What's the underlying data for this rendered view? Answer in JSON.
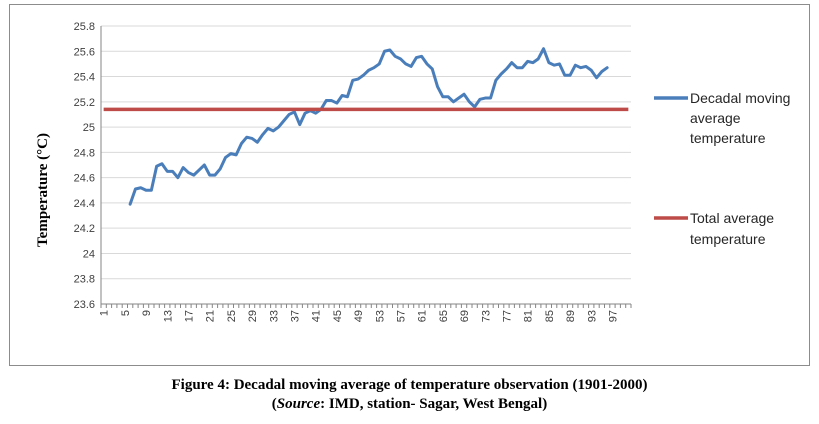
{
  "chart_data": {
    "type": "line",
    "ylabel": "Temperature (°C)",
    "ylim": [
      23.6,
      25.8
    ],
    "ytick_step": 0.2,
    "yticks": [
      "23.6",
      "23.8",
      "24",
      "24.2",
      "24.4",
      "24.6",
      "24.8",
      "25",
      "25.2",
      "25.4",
      "25.6",
      "25.8"
    ],
    "xlim": [
      1,
      100
    ],
    "xtick_labels": [
      1,
      5,
      9,
      13,
      17,
      21,
      25,
      29,
      33,
      37,
      41,
      45,
      49,
      53,
      57,
      61,
      65,
      69,
      73,
      77,
      81,
      85,
      89,
      93,
      97
    ],
    "grid": true,
    "legend_position": "right",
    "series": [
      {
        "name": "Decadal moving average temperature",
        "color": "#4a7ebb",
        "x_start": 6,
        "values": [
          24.39,
          24.51,
          24.52,
          24.5,
          24.5,
          24.69,
          24.71,
          24.65,
          24.65,
          24.6,
          24.68,
          24.64,
          24.62,
          24.66,
          24.7,
          24.62,
          24.62,
          24.67,
          24.76,
          24.79,
          24.78,
          24.87,
          24.92,
          24.91,
          24.88,
          24.94,
          24.99,
          24.97,
          25.0,
          25.05,
          25.1,
          25.12,
          25.02,
          25.11,
          25.13,
          25.11,
          25.14,
          25.21,
          25.21,
          25.19,
          25.25,
          25.24,
          25.37,
          25.38,
          25.41,
          25.45,
          25.47,
          25.5,
          25.6,
          25.61,
          25.56,
          25.54,
          25.5,
          25.48,
          25.55,
          25.56,
          25.5,
          25.46,
          25.32,
          25.24,
          25.24,
          25.2,
          25.23,
          25.26,
          25.2,
          25.16,
          25.22,
          25.23,
          25.23,
          25.37,
          25.42,
          25.46,
          25.51,
          25.47,
          25.47,
          25.52,
          25.51,
          25.54,
          25.62,
          25.51,
          25.49,
          25.5,
          25.41,
          25.41,
          25.49,
          25.47,
          25.48,
          25.45,
          25.39,
          25.44,
          25.47
        ]
      },
      {
        "name": "Total average temperature",
        "color": "#be4b48",
        "x_start": 1,
        "constant": 25.14
      }
    ]
  },
  "legend": {
    "series1_lines": [
      "Decadal moving",
      "average",
      "temperature"
    ],
    "series2_lines": [
      "Total average",
      "temperature"
    ]
  },
  "caption": {
    "line1": "Figure 4: Decadal moving average of temperature observation (1901-2000)",
    "line2_open": "(",
    "line2_source": "Source",
    "line2_rest": ": IMD, station- Sagar, West Bengal)"
  }
}
